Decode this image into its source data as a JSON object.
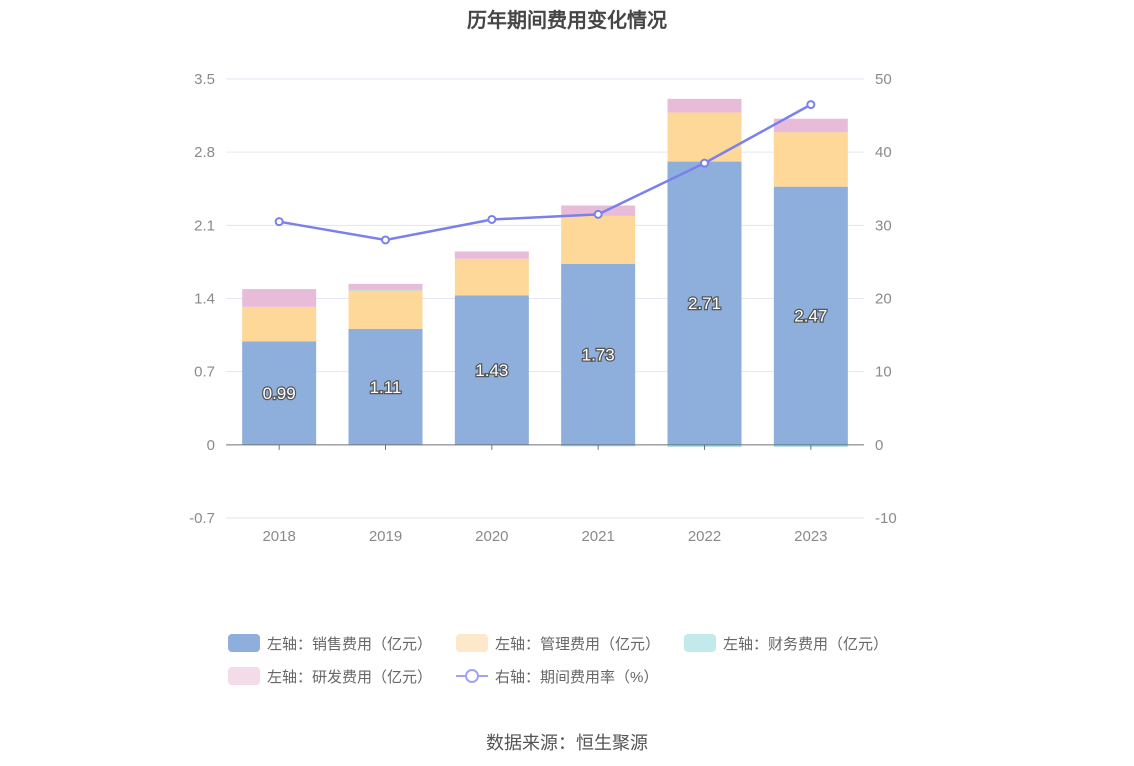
{
  "title": "历年期间费用变化情况",
  "source": "数据来源：恒生聚源",
  "chart_data": {
    "type": "bar",
    "stacked": true,
    "categories": [
      "2018",
      "2019",
      "2020",
      "2021",
      "2022",
      "2023"
    ],
    "left_axis": {
      "ticks": [
        "3.5",
        "2.8",
        "2.1",
        "1.4",
        "0.7",
        "0",
        "-0.7"
      ],
      "range": [
        -0.7,
        3.5
      ]
    },
    "right_axis": {
      "ticks": [
        "50",
        "40",
        "30",
        "20",
        "10",
        "0",
        "-10"
      ],
      "range": [
        -10,
        50
      ]
    },
    "series": [
      {
        "name": "左轴：销售费用（亿元）",
        "axis": "left",
        "type": "bar",
        "color": "#8eaedc",
        "values": [
          0.99,
          1.11,
          1.43,
          1.73,
          2.71,
          2.47
        ],
        "labels": [
          "0.99",
          "1.11",
          "1.43",
          "1.73",
          "2.71",
          "2.47"
        ]
      },
      {
        "name": "左轴：管理费用（亿元）",
        "axis": "left",
        "type": "bar",
        "color": "#fdd899",
        "values": [
          0.33,
          0.37,
          0.35,
          0.46,
          0.47,
          0.52
        ]
      },
      {
        "name": "左轴：财务费用（亿元）",
        "axis": "left",
        "type": "bar",
        "color": "#a8e0e2",
        "values": [
          0.0,
          0.01,
          0.0,
          -0.01,
          -0.02,
          -0.02
        ]
      },
      {
        "name": "左轴：研发费用（亿元）",
        "axis": "left",
        "type": "bar",
        "color": "#e8bcd9",
        "values": [
          0.17,
          0.05,
          0.07,
          0.1,
          0.13,
          0.13
        ]
      },
      {
        "name": "右轴：期间费用率（%）",
        "axis": "right",
        "type": "line",
        "color": "#7b80ea",
        "values": [
          30.5,
          28.0,
          30.8,
          31.5,
          38.5,
          46.5
        ]
      }
    ],
    "legend_position": "bottom",
    "grid": true
  }
}
